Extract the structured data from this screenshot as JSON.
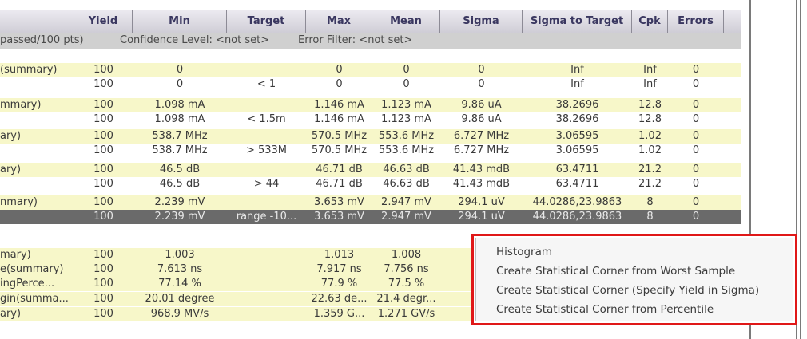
{
  "header": {
    "columns": [
      "Yield",
      "Min",
      "Target",
      "Max",
      "Mean",
      "Sigma",
      "Sigma to Target",
      "Cpk",
      "Errors"
    ]
  },
  "subheader": {
    "passed": "passed/100 pts)",
    "confidence": "Confidence Level: <not set>",
    "error_filter": "Error Filter: <not set>"
  },
  "rows": [
    {
      "name": "(summary)",
      "yield": "100",
      "min": "0",
      "target": "",
      "max": "0",
      "mean": "0",
      "sigma": "0",
      "s2t": "Inf",
      "cpk": "Inf",
      "errors": "0"
    },
    {
      "name": "",
      "yield": "100",
      "min": "0",
      "target": "< 1",
      "max": "0",
      "mean": "0",
      "sigma": "0",
      "s2t": "Inf",
      "cpk": "Inf",
      "errors": "0"
    },
    {
      "name": "mmary)",
      "yield": "100",
      "min": "1.098 mA",
      "target": "",
      "max": "1.146 mA",
      "mean": "1.123 mA",
      "sigma": "9.86 uA",
      "s2t": "38.2696",
      "cpk": "12.8",
      "errors": "0"
    },
    {
      "name": "",
      "yield": "100",
      "min": "1.098 mA",
      "target": "< 1.5m",
      "max": "1.146 mA",
      "mean": "1.123 mA",
      "sigma": "9.86 uA",
      "s2t": "38.2696",
      "cpk": "12.8",
      "errors": "0"
    },
    {
      "name": "ary)",
      "yield": "100",
      "min": "538.7 MHz",
      "target": "",
      "max": "570.5 MHz",
      "mean": "553.6 MHz",
      "sigma": "6.727 MHz",
      "s2t": "3.06595",
      "cpk": "1.02",
      "errors": "0"
    },
    {
      "name": "",
      "yield": "100",
      "min": "538.7 MHz",
      "target": "> 533M",
      "max": "570.5 MHz",
      "mean": "553.6 MHz",
      "sigma": "6.727 MHz",
      "s2t": "3.06595",
      "cpk": "1.02",
      "errors": "0"
    },
    {
      "name": "ary)",
      "yield": "100",
      "min": "46.5 dB",
      "target": "",
      "max": "46.71 dB",
      "mean": "46.63 dB",
      "sigma": "41.43 mdB",
      "s2t": "63.4711",
      "cpk": "21.2",
      "errors": "0"
    },
    {
      "name": "",
      "yield": "100",
      "min": "46.5 dB",
      "target": "> 44",
      "max": "46.71 dB",
      "mean": "46.63 dB",
      "sigma": "41.43 mdB",
      "s2t": "63.4711",
      "cpk": "21.2",
      "errors": "0"
    },
    {
      "name": "nmary)",
      "yield": "100",
      "min": "2.239 mV",
      "target": "",
      "max": "3.653 mV",
      "mean": "2.947 mV",
      "sigma": "294.1 uV",
      "s2t": "44.0286,23.9863",
      "cpk": "8",
      "errors": "0"
    },
    {
      "name": "",
      "yield": "100",
      "min": "2.239 mV",
      "target": "range -10...",
      "max": "3.653 mV",
      "mean": "2.947 mV",
      "sigma": "294.1 uV",
      "s2t": "44.0286,23.9863",
      "cpk": "8",
      "errors": "0"
    },
    {
      "name": "",
      "yield": "",
      "min": "",
      "target": "",
      "max": "",
      "mean": "",
      "sigma": "",
      "s2t": "",
      "cpk": "",
      "errors": ""
    },
    {
      "name": "mary)",
      "yield": "100",
      "min": "1.003",
      "target": "",
      "max": "1.013",
      "mean": "1.008",
      "sigma": "",
      "s2t": "",
      "cpk": "",
      "errors": ""
    },
    {
      "name": "e(summary)",
      "yield": "100",
      "min": "7.613 ns",
      "target": "",
      "max": "7.917 ns",
      "mean": "7.756 ns",
      "sigma": "",
      "s2t": "",
      "cpk": "",
      "errors": ""
    },
    {
      "name": "ingPerce...",
      "yield": "100",
      "min": "77.14 %",
      "target": "",
      "max": "77.9 %",
      "mean": "77.5 %",
      "sigma": "",
      "s2t": "",
      "cpk": "",
      "errors": ""
    },
    {
      "name": "gin(summa...",
      "yield": "100",
      "min": "20.01 degree",
      "target": "",
      "max": "22.63 de...",
      "mean": "21.4 degr...",
      "sigma": "",
      "s2t": "",
      "cpk": "",
      "errors": ""
    },
    {
      "name": "ary)",
      "yield": "100",
      "min": "968.9 MV/s",
      "target": "",
      "max": "1.359 G...",
      "mean": "1.271 GV/s",
      "sigma": "",
      "s2t": "",
      "cpk": "",
      "errors": ""
    }
  ],
  "context_menu": {
    "items": [
      "Histogram",
      "Create Statistical Corner from Worst Sample",
      "Create Statistical Corner (Specify Yield in Sigma)",
      "Create Statistical Corner from Percentile"
    ]
  },
  "colors": {
    "row_yellow": "#f7f7c9",
    "row_selected": "#6a6a6a",
    "menu_highlight_border": "#e01818"
  }
}
